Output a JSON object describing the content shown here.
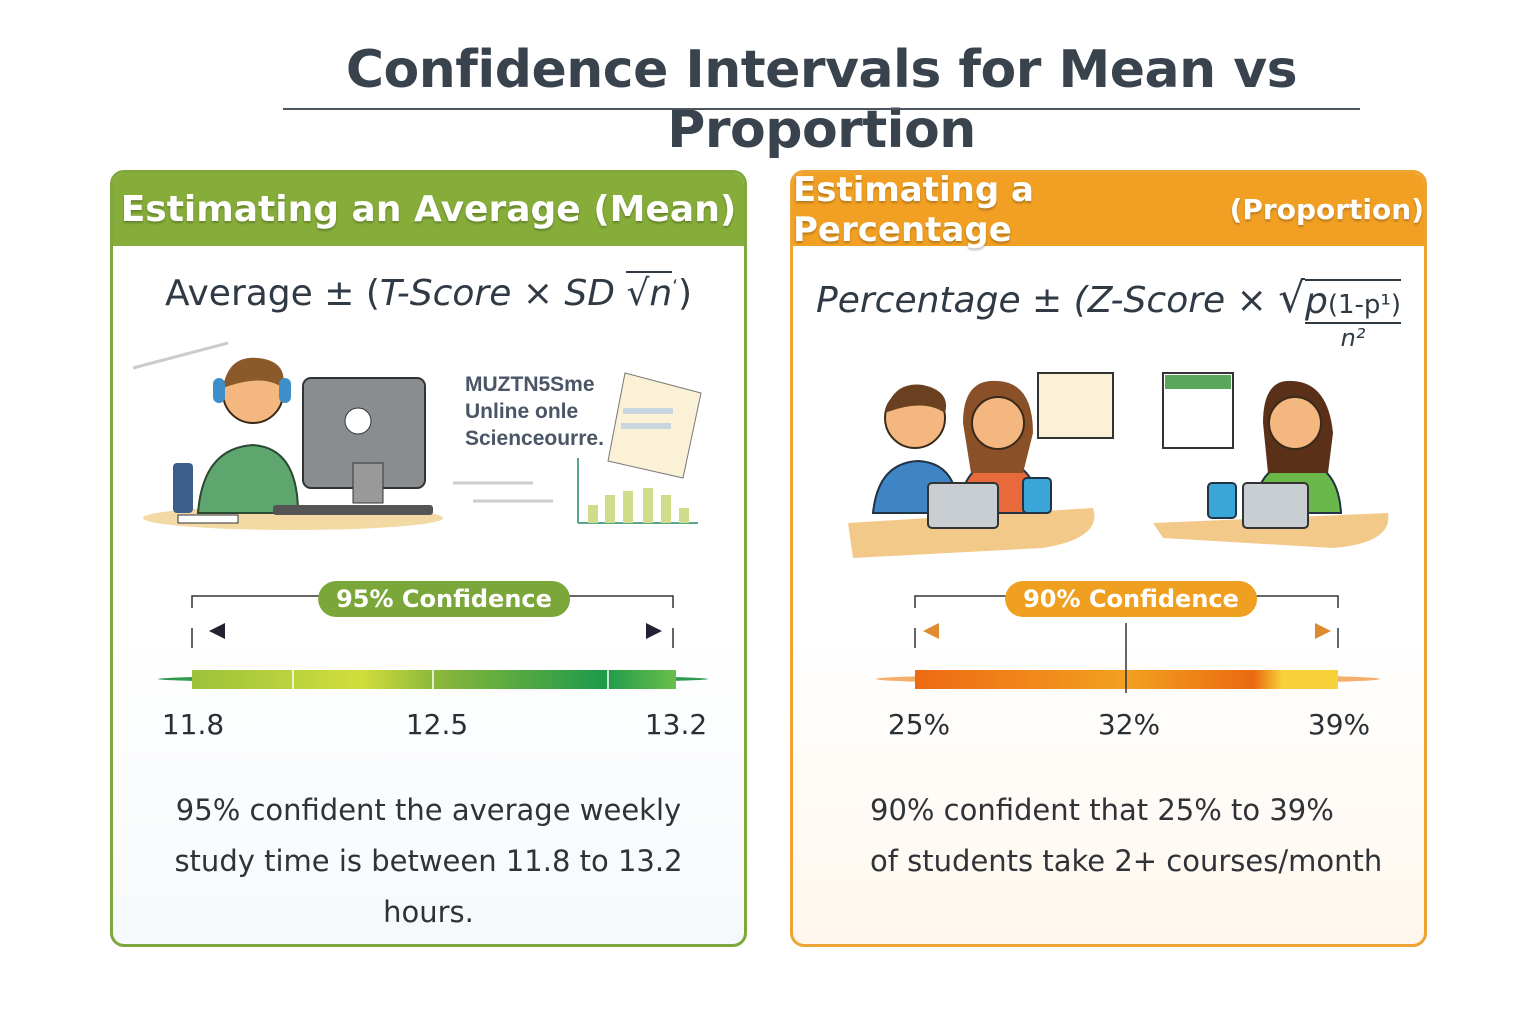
{
  "title": "Confidence Intervals for Mean vs Proportion",
  "mean_card": {
    "header": "Estimating an Average (Mean)",
    "formula": {
      "lead": "Average ± (",
      "score": "T-Score",
      "times": " × SD ",
      "root": "√",
      "n": "n",
      "sup": "ʻ",
      "close": ")"
    },
    "illustration_text": [
      "MUZTN5Sme",
      "Unline onle",
      "Scienceourre."
    ],
    "confidence_label": "95% Confidence",
    "confidence_level": 95,
    "ticks": [
      "11.8",
      "12.5",
      "13.2"
    ],
    "interval": {
      "low": 11.8,
      "estimate": 12.5,
      "high": 13.2
    },
    "description": "95% confident the average weekly study time is between 11.8 to 13.2 hours.",
    "accent": "#86ad3a"
  },
  "prop_card": {
    "header": "Estimating a Percentage",
    "header_small": "(Proportion)",
    "formula": {
      "lead": "Percentage ± (Z-Score × ",
      "root": "√",
      "num_p": "p",
      "num_rest": "(1-p¹)",
      "den": "n²"
    },
    "confidence_label": "90% Confidence",
    "confidence_level": 90,
    "ticks": [
      "25%",
      "32%",
      "39%"
    ],
    "interval": {
      "low": 25,
      "estimate": 32,
      "high": 39
    },
    "description_lines": [
      "90% confident that 25% to 39%",
      "of students take 2+ courses/month"
    ],
    "accent": "#f2a023"
  }
}
